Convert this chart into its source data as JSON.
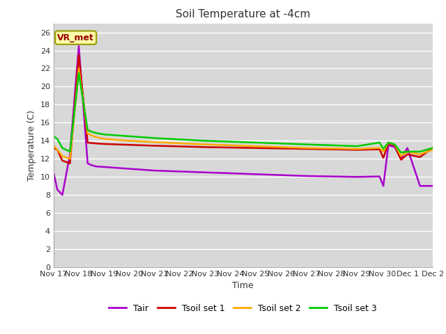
{
  "title": "Soil Temperature at -4cm",
  "xlabel": "Time",
  "ylabel": "Temperature (C)",
  "ylim": [
    0,
    27
  ],
  "yticks": [
    0,
    2,
    4,
    6,
    8,
    10,
    12,
    14,
    16,
    18,
    20,
    22,
    24,
    26
  ],
  "plot_bg": "#d8d8d8",
  "fig_bg": "#ffffff",
  "annotation_text": "VR_met",
  "annotation_fg": "#990000",
  "annotation_bg": "#ffffaa",
  "annotation_border": "#999900",
  "series": {
    "Tair": {
      "color": "#aa00cc",
      "linewidth": 1.8,
      "x": [
        0,
        0.15,
        0.35,
        0.65,
        1.0,
        1.35,
        1.5,
        1.7,
        2.0,
        3.0,
        4.0,
        5.0,
        6.0,
        7.0,
        8.0,
        9.0,
        10.0,
        11.0,
        12.0,
        12.9,
        13.05,
        13.25,
        13.5,
        13.75,
        14.0,
        14.5,
        15.0
      ],
      "y": [
        10.5,
        8.6,
        8.0,
        12.5,
        24.5,
        11.5,
        11.3,
        11.15,
        11.1,
        10.9,
        10.7,
        10.6,
        10.5,
        10.4,
        10.3,
        10.2,
        10.1,
        10.05,
        10.0,
        10.05,
        9.0,
        13.5,
        13.3,
        12.0,
        13.2,
        9.0,
        9.0
      ]
    },
    "Tsoil_set1": {
      "color": "#cc0000",
      "linewidth": 1.8,
      "x": [
        0,
        0.15,
        0.35,
        0.65,
        1.0,
        1.35,
        1.5,
        1.7,
        2.0,
        3.0,
        4.0,
        5.0,
        6.0,
        7.0,
        8.0,
        9.0,
        10.0,
        11.0,
        12.0,
        12.9,
        13.05,
        13.25,
        13.5,
        13.75,
        14.0,
        14.5,
        15.0
      ],
      "y": [
        13.2,
        13.0,
        11.8,
        11.5,
        23.5,
        13.8,
        13.75,
        13.7,
        13.65,
        13.55,
        13.45,
        13.38,
        13.3,
        13.25,
        13.2,
        13.15,
        13.1,
        13.05,
        13.0,
        13.05,
        12.1,
        13.7,
        13.5,
        11.9,
        12.5,
        12.2,
        13.2
      ]
    },
    "Tsoil_set2": {
      "color": "#ffaa00",
      "linewidth": 1.8,
      "x": [
        0,
        0.15,
        0.35,
        0.65,
        1.0,
        1.35,
        1.5,
        1.7,
        2.0,
        3.0,
        4.0,
        5.0,
        6.0,
        7.0,
        8.0,
        9.0,
        10.0,
        11.0,
        12.0,
        12.9,
        13.05,
        13.25,
        13.5,
        13.75,
        14.0,
        14.5,
        15.0
      ],
      "y": [
        13.5,
        13.0,
        12.3,
        12.0,
        22.0,
        14.8,
        14.6,
        14.4,
        14.2,
        14.0,
        13.85,
        13.72,
        13.6,
        13.5,
        13.4,
        13.3,
        13.2,
        13.15,
        13.1,
        13.2,
        12.8,
        13.8,
        13.6,
        12.3,
        12.8,
        12.5,
        13.0
      ]
    },
    "Tsoil_set3": {
      "color": "#00cc00",
      "linewidth": 1.8,
      "x": [
        0,
        0.15,
        0.35,
        0.65,
        1.0,
        1.35,
        1.5,
        1.7,
        2.0,
        3.0,
        4.0,
        5.0,
        6.0,
        7.0,
        8.0,
        9.0,
        10.0,
        11.0,
        12.0,
        12.9,
        13.05,
        13.25,
        13.5,
        13.75,
        14.0,
        14.5,
        15.0
      ],
      "y": [
        14.5,
        14.2,
        13.2,
        12.8,
        21.5,
        15.2,
        15.0,
        14.85,
        14.7,
        14.5,
        14.3,
        14.15,
        14.0,
        13.9,
        13.8,
        13.7,
        13.6,
        13.5,
        13.4,
        13.8,
        13.1,
        13.8,
        13.6,
        12.7,
        12.8,
        12.8,
        13.2
      ]
    }
  },
  "xtick_positions": [
    0,
    1,
    2,
    3,
    4,
    5,
    6,
    7,
    8,
    9,
    10,
    11,
    12,
    13,
    14,
    15
  ],
  "xtick_labels": [
    "Nov 17",
    "Nov 18",
    "Nov 19",
    "Nov 20",
    "Nov 21",
    "Nov 22",
    "Nov 23",
    "Nov 24",
    "Nov 25",
    "Nov 26",
    "Nov 27",
    "Nov 28",
    "Nov 29",
    "Nov 30",
    "Dec 1",
    "Dec 2"
  ],
  "legend_entries": [
    "Tair",
    "Tsoil set 1",
    "Tsoil set 2",
    "Tsoil set 3"
  ],
  "legend_colors": [
    "#aa00cc",
    "#cc0000",
    "#ffaa00",
    "#00cc00"
  ],
  "grid_color": "#ffffff",
  "grid_linewidth": 1.0,
  "tick_fontsize": 8,
  "title_fontsize": 11,
  "axis_label_fontsize": 9,
  "legend_fontsize": 9
}
